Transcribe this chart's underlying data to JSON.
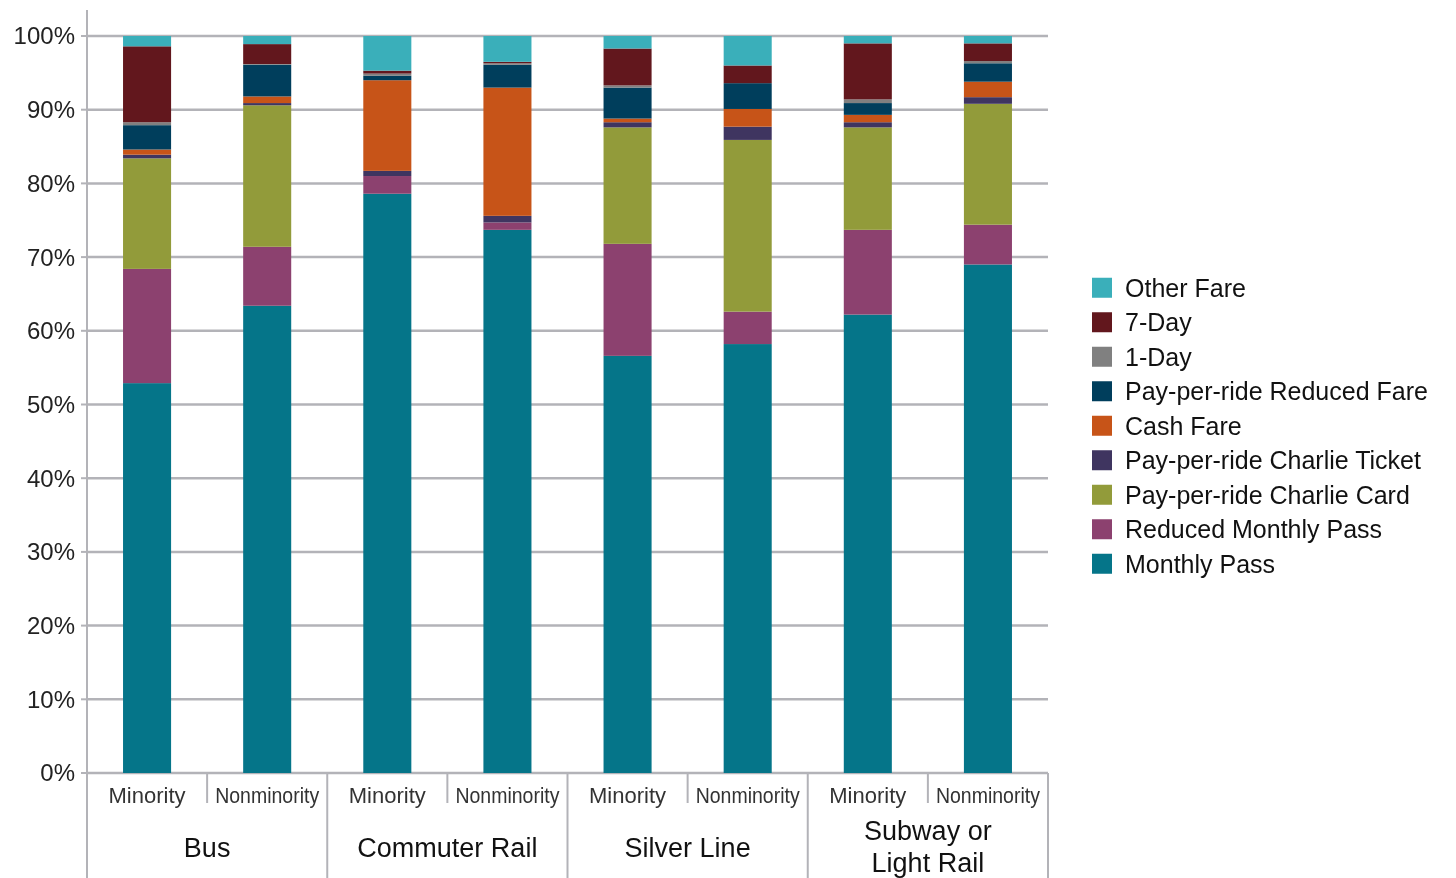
{
  "chart_data": {
    "type": "bar",
    "stacked": true,
    "categories": [
      "Minority",
      "Nonminority",
      "Minority",
      "Nonminority",
      "Minority",
      "Nonminority",
      "Minority",
      "Nonminority"
    ],
    "annotations": [
      "Bus",
      "Commuter Rail",
      "Silver Line",
      "Subway or Light Rail"
    ],
    "ylim": [
      0,
      100
    ],
    "yticks": [
      {
        "value": 0,
        "label": "0%"
      },
      {
        "value": 10,
        "label": "10%"
      },
      {
        "value": 20,
        "label": "20%"
      },
      {
        "value": 30,
        "label": "30%"
      },
      {
        "value": 40,
        "label": "40%"
      },
      {
        "value": 50,
        "label": "50%"
      },
      {
        "value": 60,
        "label": "60%"
      },
      {
        "value": 70,
        "label": "70%"
      },
      {
        "value": 80,
        "label": "80%"
      },
      {
        "value": 90,
        "label": "90%"
      },
      {
        "value": 100,
        "label": "100%"
      }
    ],
    "grid": "y",
    "legend": "right",
    "series": [
      {
        "name": "Monthly Pass",
        "color": "#057589",
        "values": [
          52.9,
          63.4,
          78.6,
          73.7,
          56.6,
          58.2,
          62.2,
          69.0
        ]
      },
      {
        "name": "Reduced Monthly Pass",
        "color": "#8c416f",
        "values": [
          15.5,
          8.0,
          2.4,
          1.0,
          15.2,
          4.4,
          11.5,
          5.4
        ]
      },
      {
        "name": "Pay-per-ride Charlie Card",
        "color": "#929b3a",
        "values": [
          15.0,
          19.2,
          0,
          0,
          15.8,
          23.3,
          13.9,
          16.4
        ]
      },
      {
        "name": "Pay-per-ride Charlie Ticket",
        "color": "#3f3560",
        "values": [
          0.5,
          0.3,
          0.7,
          0.9,
          0.7,
          1.8,
          0.7,
          0.9
        ]
      },
      {
        "name": "Cash Fare",
        "color": "#c75418",
        "values": [
          0.7,
          0.9,
          12.3,
          17.4,
          0.5,
          2.4,
          1.0,
          2.1
        ]
      },
      {
        "name": "Pay-per-ride Reduced Fare",
        "color": "#003e5c",
        "values": [
          3.3,
          4.3,
          0.6,
          3.1,
          4.2,
          3.5,
          1.6,
          2.5
        ]
      },
      {
        "name": "1-Day",
        "color": "#808080",
        "values": [
          0.4,
          0.1,
          0.3,
          0.2,
          0.3,
          0,
          0.5,
          0.3
        ]
      },
      {
        "name": "7-Day",
        "color": "#62171d",
        "values": [
          10.3,
          2.7,
          0.4,
          0.2,
          5.0,
          2.4,
          7.6,
          2.4
        ]
      },
      {
        "name": "Other Fare",
        "color": "#3aafba",
        "values": [
          1.4,
          1.1,
          4.7,
          3.5,
          1.7,
          4.0,
          1.0,
          1.0
        ]
      }
    ]
  }
}
